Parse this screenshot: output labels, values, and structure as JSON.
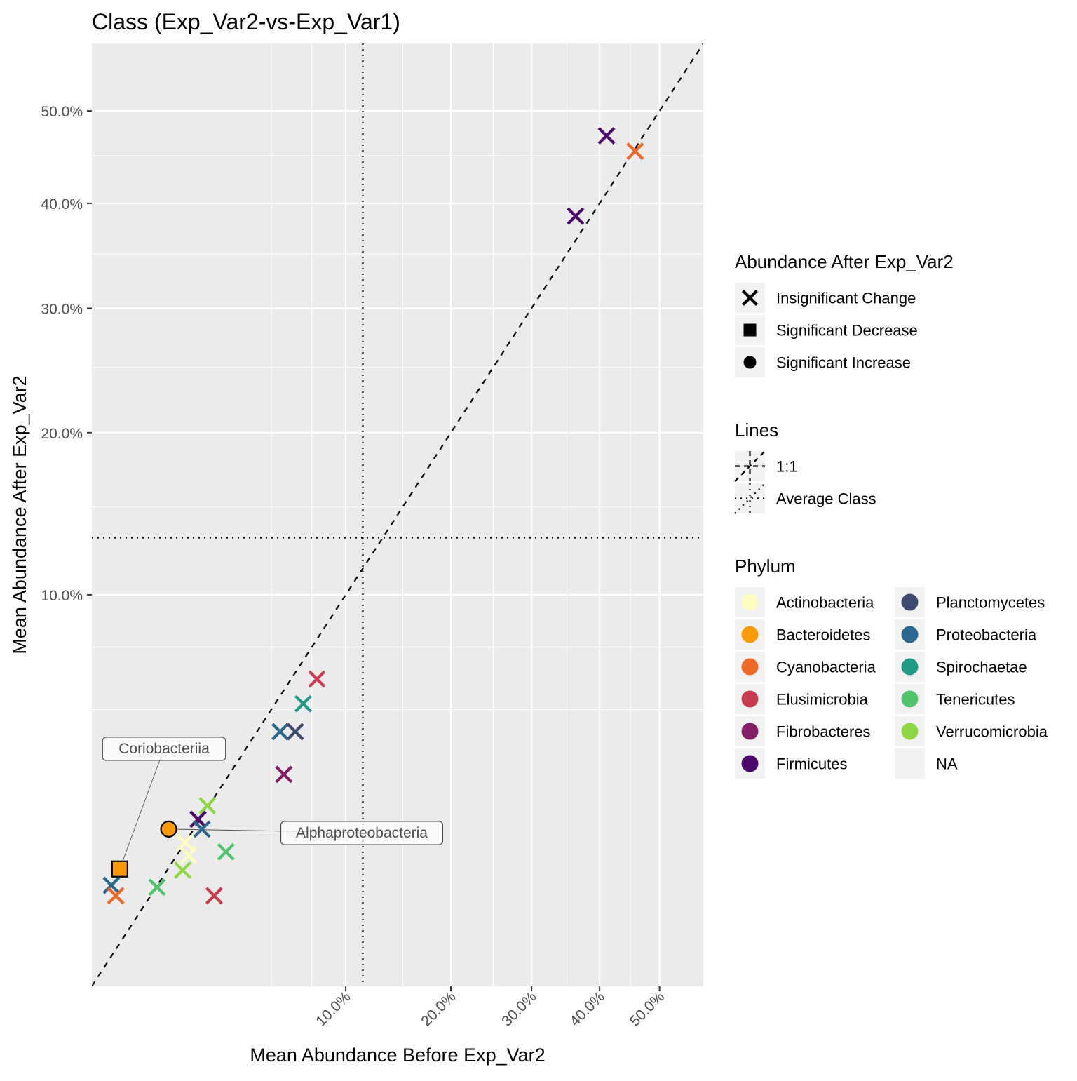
{
  "chart_data": {
    "type": "scatter",
    "title": "Class (Exp_Var2-vs-Exp_Var1)",
    "xlabel": "Mean Abundance Before Exp_Var2",
    "ylabel": "Mean Abundance After Exp_Var2",
    "scale": "sqrt",
    "x_ticks": [
      {
        "value": 10,
        "label": "10.0%"
      },
      {
        "value": 20,
        "label": "20.0%"
      },
      {
        "value": 30,
        "label": "30.0%"
      },
      {
        "value": 40,
        "label": "40.0%"
      },
      {
        "value": 50,
        "label": "50.0%"
      }
    ],
    "y_ticks": [
      {
        "value": 10,
        "label": "10.0%"
      },
      {
        "value": 20,
        "label": "20.0%"
      },
      {
        "value": 30,
        "label": "30.0%"
      },
      {
        "value": 40,
        "label": "40.0%"
      },
      {
        "value": 50,
        "label": "50.0%"
      }
    ],
    "x_minor_grid": [
      5,
      7.5,
      15,
      25,
      35,
      45
    ],
    "y_minor_grid": [
      5,
      7.5,
      15,
      25,
      35,
      45
    ],
    "xlim": [
      0,
      58
    ],
    "ylim": [
      0,
      58
    ],
    "grid": true,
    "reference_lines": {
      "one_to_one": {
        "slope": 1
      },
      "average_x": 11.39,
      "average_y": 13.13
    },
    "points": [
      {
        "x": 0.121,
        "y": 0.898,
        "phylum": "Bacteroidetes",
        "change": "Significant Decrease"
      },
      {
        "x": 0.916,
        "y": 1.613,
        "phylum": "Bacteroidetes",
        "change": "Significant Increase"
      },
      {
        "x": 45.8,
        "y": 45.5,
        "phylum": "Cyanobacteria",
        "change": "Insignificant Change"
      },
      {
        "x": 41.1,
        "y": 47.2,
        "phylum": "Firmicutes",
        "change": "Insignificant Change"
      },
      {
        "x": 36.3,
        "y": 38.7,
        "phylum": "Firmicutes",
        "change": "Insignificant Change"
      },
      {
        "x": 7.86,
        "y": 6.16,
        "phylum": "Elusimicrobia",
        "change": "Insignificant Change"
      },
      {
        "x": 6.93,
        "y": 5.21,
        "phylum": "Spirochaetae",
        "change": "Insignificant Change"
      },
      {
        "x": 5.5,
        "y": 4.23,
        "phylum": "Proteobacteria",
        "change": "Insignificant Change"
      },
      {
        "x": 6.42,
        "y": 4.23,
        "phylum": "Planctomycetes",
        "change": "Insignificant Change"
      },
      {
        "x": 5.72,
        "y": 2.93,
        "phylum": "Fibrobacteres",
        "change": "Insignificant Change"
      },
      {
        "x": 2.07,
        "y": 2.13,
        "phylum": "Verrucomicrobia",
        "change": "Insignificant Change"
      },
      {
        "x": 1.75,
        "y": 1.82,
        "phylum": "Firmicutes",
        "change": "Insignificant Change"
      },
      {
        "x": 1.88,
        "y": 1.61,
        "phylum": "Proteobacteria",
        "change": "Insignificant Change"
      },
      {
        "x": 1.35,
        "y": 1.35,
        "phylum": "Actinobacteria",
        "change": "Insignificant Change"
      },
      {
        "x": 1.45,
        "y": 1.12,
        "phylum": "Actinobacteria",
        "change": "Insignificant Change"
      },
      {
        "x": 2.79,
        "y": 1.18,
        "phylum": "Tenericutes",
        "change": "Insignificant Change"
      },
      {
        "x": 1.28,
        "y": 0.88,
        "phylum": "Verrucomicrobia",
        "change": "Insignificant Change"
      },
      {
        "x": 0.66,
        "y": 0.64,
        "phylum": "Tenericutes",
        "change": "Insignificant Change"
      },
      {
        "x": 0.059,
        "y": 0.665,
        "phylum": "Proteobacteria",
        "change": "Insignificant Change"
      },
      {
        "x": 0.089,
        "y": 0.535,
        "phylum": "Cyanobacteria",
        "change": "Insignificant Change"
      },
      {
        "x": 2.32,
        "y": 0.535,
        "phylum": "Elusimicrobia",
        "change": "Insignificant Change"
      }
    ],
    "annotations": [
      {
        "text": "Coriobacteriia",
        "x": 0.121,
        "y": 0.898
      },
      {
        "text": "Alphaproteobacteria",
        "x": 0.916,
        "y": 1.613
      }
    ],
    "legend": {
      "placement": "right",
      "shape_title": "Abundance After Exp_Var2",
      "shapes": [
        {
          "label": "Insignificant Change",
          "shape": "x"
        },
        {
          "label": "Significant Decrease",
          "shape": "square"
        },
        {
          "label": "Significant Increase",
          "shape": "circle"
        }
      ],
      "lines_title": "Lines",
      "lines": [
        {
          "label": "1:1",
          "style": "dashed"
        },
        {
          "label": "Average Class",
          "style": "dotted"
        }
      ],
      "phylum_title": "Phylum",
      "phyla": [
        {
          "label": "Actinobacteria",
          "color": "#FCFDBF"
        },
        {
          "label": "Bacteroidetes",
          "color": "#FB9A06"
        },
        {
          "label": "Cyanobacteria",
          "color": "#ED6925"
        },
        {
          "label": "Elusimicrobia",
          "color": "#C73D4F"
        },
        {
          "label": "Fibrobacteres",
          "color": "#841F66"
        },
        {
          "label": "Firmicutes",
          "color": "#4B0A6B"
        },
        {
          "label": "Planctomycetes",
          "color": "#3E4A6E"
        },
        {
          "label": "Proteobacteria",
          "color": "#2C6790"
        },
        {
          "label": "Spirochaetae",
          "color": "#1F9A84"
        },
        {
          "label": "Tenericutes",
          "color": "#50C46A"
        },
        {
          "label": "Verrucomicrobia",
          "color": "#8FD744"
        },
        {
          "label": "NA",
          "color": ""
        }
      ]
    }
  }
}
